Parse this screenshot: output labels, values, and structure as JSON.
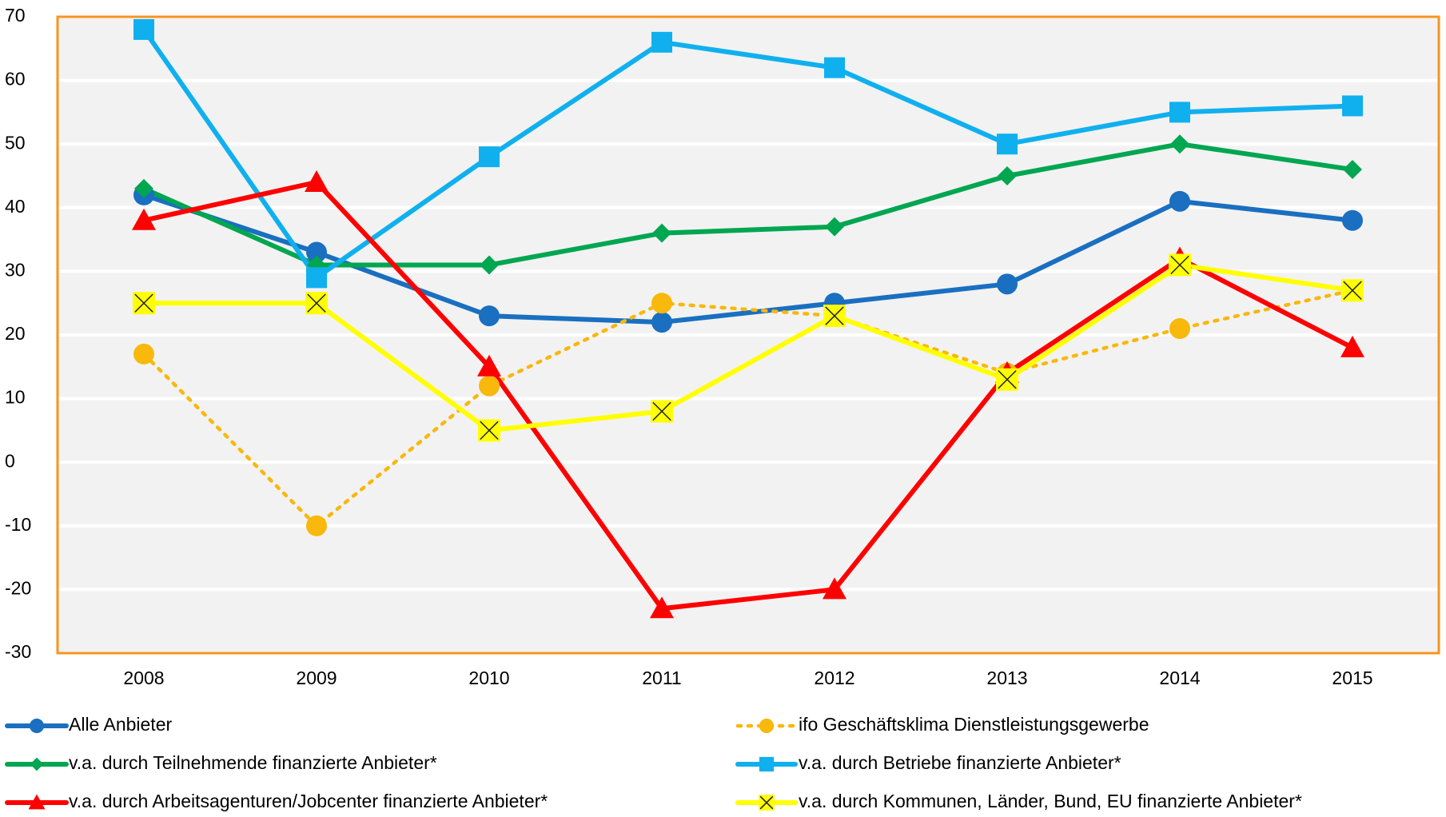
{
  "chart_data": {
    "type": "line",
    "categories": [
      "2008",
      "2009",
      "2010",
      "2011",
      "2012",
      "2013",
      "2014",
      "2015"
    ],
    "ylim": [
      -30,
      70
    ],
    "yticks": [
      -30,
      -20,
      -10,
      0,
      10,
      20,
      30,
      40,
      50,
      60,
      70
    ],
    "grid": true,
    "legend": "bottom",
    "series": [
      {
        "name": "Alle Anbieter",
        "color": "#1a6fc0",
        "marker": "circle",
        "linestyle": "solid",
        "values": [
          42,
          33,
          23,
          22,
          25,
          28,
          41,
          38
        ]
      },
      {
        "name": "ifo Geschäftsklima Dienstleistungsgewerbe",
        "color": "#f8b80c",
        "marker": "circle",
        "linestyle": "dotted",
        "values": [
          17,
          -10,
          12,
          25,
          23,
          14,
          21,
          27
        ]
      },
      {
        "name": "v.a.  durch Teilnehmende finanzierte Anbieter*",
        "color": "#00a650",
        "marker": "diamond",
        "linestyle": "solid",
        "values": [
          43,
          31,
          31,
          36,
          37,
          45,
          50,
          46
        ]
      },
      {
        "name": "v.a. durch Betriebe finanzierte Anbieter*",
        "color": "#10b0ee",
        "marker": "square",
        "linestyle": "solid",
        "values": [
          68,
          29,
          48,
          66,
          62,
          50,
          55,
          56
        ]
      },
      {
        "name": "v.a. durch Arbeitsagenturen/Jobcenter finanzierte Anbieter*",
        "color": "#ff0000",
        "marker": "triangle",
        "linestyle": "solid",
        "values": [
          38,
          44,
          15,
          -23,
          -20,
          14,
          32,
          18
        ]
      },
      {
        "name": "v.a. durch Kommunen, Länder, Bund, EU finanzierte Anbieter*",
        "color": "#ffff00",
        "marker": "x",
        "linestyle": "solid",
        "values": [
          25,
          25,
          5,
          8,
          23,
          13,
          31,
          27
        ]
      }
    ]
  }
}
